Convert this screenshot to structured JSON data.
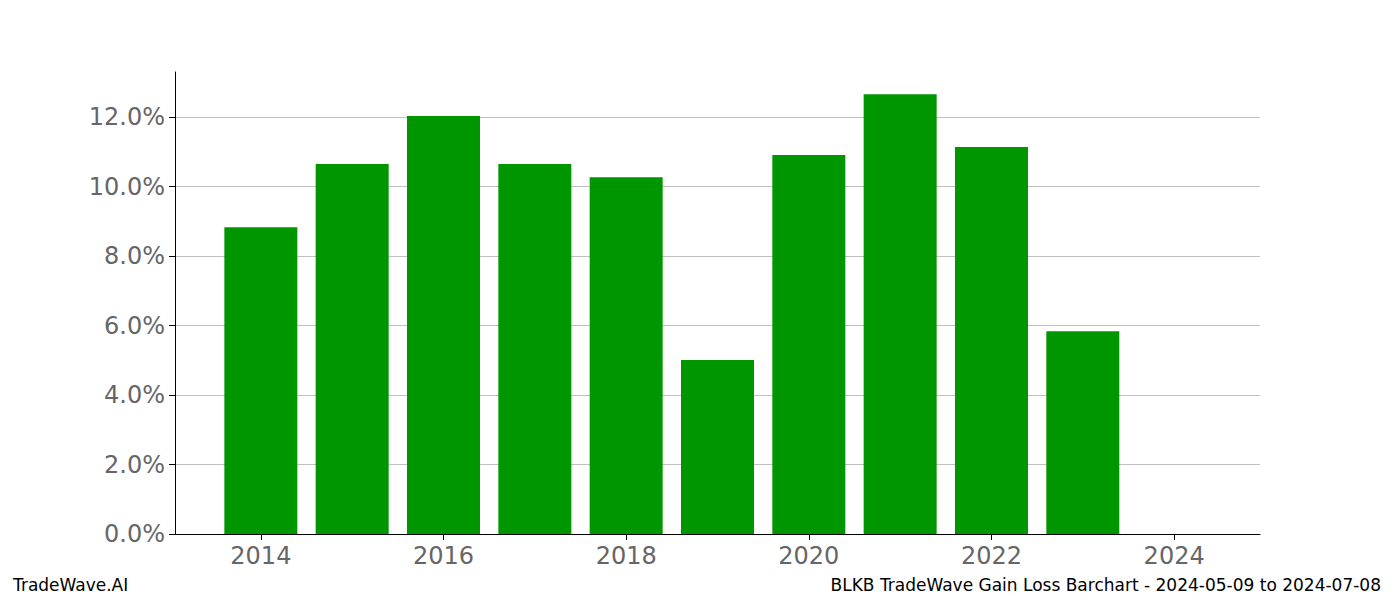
{
  "chart_data": {
    "type": "bar",
    "title": "BLKB TradeWave Gain Loss Barchart - 2024-05-09 to 2024-07-08",
    "source": "TradeWave.AI",
    "x": [
      2014,
      2015,
      2016,
      2017,
      2018,
      2019,
      2020,
      2021,
      2022,
      2023
    ],
    "values": [
      8.83,
      10.65,
      12.03,
      10.65,
      10.27,
      5.01,
      10.91,
      12.66,
      11.14,
      5.84
    ],
    "color": "#009600",
    "xlim": [
      2013.06,
      2024.94
    ],
    "xticks": [
      2014,
      2016,
      2018,
      2020,
      2022,
      2024
    ],
    "ylim": [
      0,
      13.3
    ],
    "yticks": [
      {
        "value": 0,
        "label": "0.0%"
      },
      {
        "value": 2,
        "label": "2.0%"
      },
      {
        "value": 4,
        "label": "4.0%"
      },
      {
        "value": 6,
        "label": "6.0%"
      },
      {
        "value": 8,
        "label": "8.0%"
      },
      {
        "value": 10,
        "label": "10.0%"
      },
      {
        "value": 12,
        "label": "12.0%"
      }
    ],
    "grid": true
  }
}
